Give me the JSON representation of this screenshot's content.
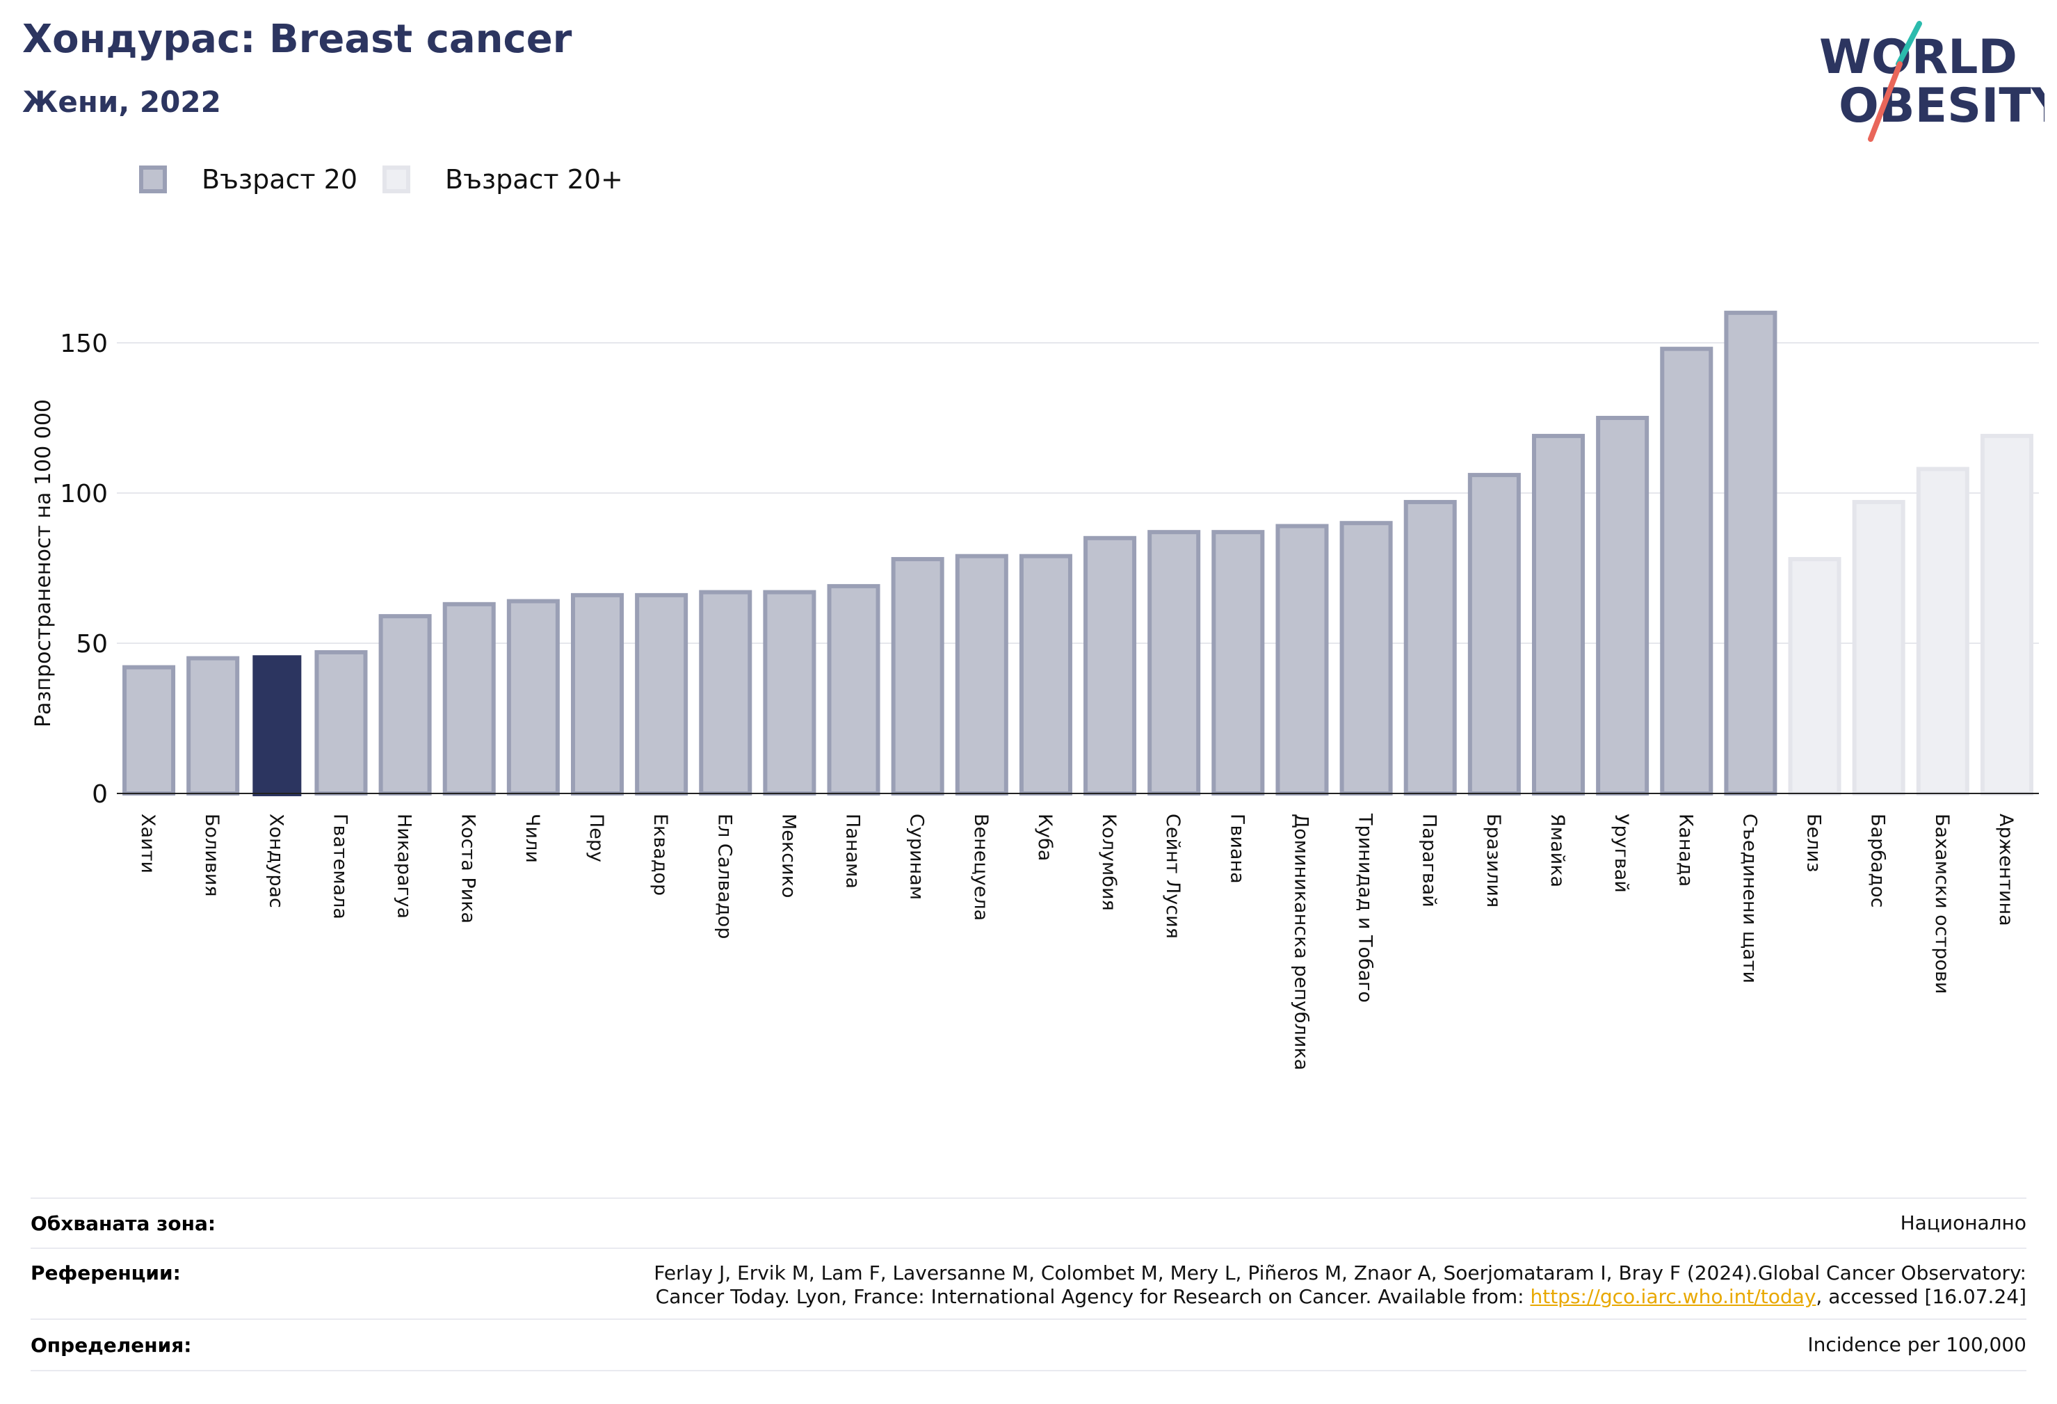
{
  "header": {
    "title": "Хондурас: Breast cancer",
    "subtitle": "Жени, 2022"
  },
  "logo": {
    "line1": "WORLD",
    "line2": "OBESITY"
  },
  "legend": {
    "items": [
      {
        "label": "Възраст 20",
        "color": "#bfc2cf"
      },
      {
        "label": "Възраст 20+",
        "color": "#eeeff3"
      }
    ]
  },
  "chart_data": {
    "type": "bar",
    "ylabel": "Разпространеност  на 100 000",
    "ylim": [
      0,
      175
    ],
    "yticks": [
      0,
      50,
      100,
      150
    ],
    "grid": true,
    "legend_position": "top-left",
    "highlight": "Хондурас",
    "colors": {
      "age20": "#bfc2cf",
      "age20plus": "#eeeff3",
      "highlight": "#2c3560"
    },
    "categories": [
      "Хаити",
      "Боливия",
      "Хондурас",
      "Гватемала",
      "Никарагуа",
      "Коста Рика",
      "Чили",
      "Перу",
      "Еквадор",
      "Ел Салвадор",
      "Мексико",
      "Панама",
      "Суринам",
      "Венецуела",
      "Куба",
      "Колумбия",
      "Сейнт Лусия",
      "Гвиана",
      "Доминиканска република",
      "Тринидад и Тобаго",
      "Парагвай",
      "Бразилия",
      "Ямайка",
      "Уругвай",
      "Канада",
      "Съединени щати",
      "Белиз",
      "Барбадос",
      "Бахамски острови",
      "Аржентина"
    ],
    "values": [
      42,
      45,
      46,
      47,
      59,
      63,
      64,
      66,
      66,
      67,
      67,
      69,
      78,
      79,
      79,
      85,
      87,
      87,
      89,
      90,
      97,
      106,
      119,
      125,
      148,
      160,
      78,
      97,
      108,
      119
    ],
    "groups": [
      "Възраст 20",
      "Възраст 20",
      "Възраст 20",
      "Възраст 20",
      "Възраст 20",
      "Възраст 20",
      "Възраст 20",
      "Възраст 20",
      "Възраст 20",
      "Възраст 20",
      "Възраст 20",
      "Възраст 20",
      "Възраст 20",
      "Възраст 20",
      "Възраст 20",
      "Възраст 20",
      "Възраст 20",
      "Възраст 20",
      "Възраст 20",
      "Възраст 20",
      "Възраст 20",
      "Възраст 20",
      "Възраст 20",
      "Възраст 20",
      "Възраст 20",
      "Възраст 20",
      "Възраст 20+",
      "Възраст 20+",
      "Възраст 20+",
      "Възраст 20+"
    ]
  },
  "meta": {
    "coverage_label": "Обхваната зона:",
    "coverage_value": "Национално",
    "references_label": "Референции:",
    "references_line1": "Ferlay J, Ervik M, Lam F, Laversanne M, Colombet M, Mery L, Piñeros M, Znaor A, Soerjomataram I, Bray F (2024).Global Cancer Observatory:",
    "references_line2_pre": "Cancer Today. Lyon, France: International Agency for Research on Cancer. Available from: ",
    "references_link": "https://gco.iarc.who.int/today",
    "references_line2_post": ", accessed [16.07.24]",
    "definitions_label": "Определения:",
    "definitions_value": "Incidence per 100,000"
  }
}
